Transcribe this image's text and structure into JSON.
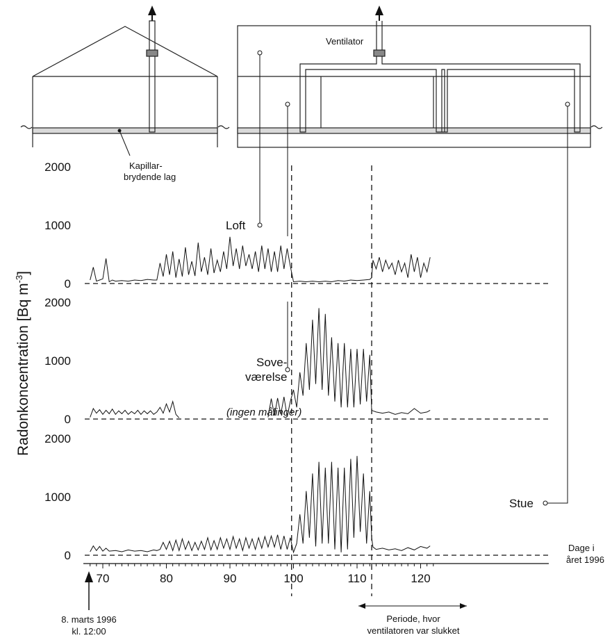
{
  "chart_data": {
    "type": "line",
    "ylabel": "Radonkoncentration [Bq m",
    "ylabel_sup": "-3",
    "ylabel_close": "]",
    "xlabel_line1": "Dage i",
    "xlabel_line2": "året 1996",
    "xlim": [
      67.5,
      122
    ],
    "ylim": [
      0,
      2000
    ],
    "x_ticks": [
      70,
      80,
      90,
      100,
      110,
      120
    ],
    "y_ticks": [
      "0",
      "1000",
      "2000"
    ],
    "fan_off_period": [
      99.7,
      112.3
    ],
    "series": [
      {
        "name": "Loft",
        "x": [
          68.0,
          68.5,
          69.0,
          69.5,
          70.0,
          70.5,
          71.0,
          71.5,
          72.0,
          73.0,
          74.0,
          75.0,
          76.0,
          77.0,
          78.0,
          78.5,
          79.0,
          79.5,
          80.0,
          80.5,
          81.0,
          81.5,
          82.0,
          82.5,
          83.0,
          83.5,
          84.0,
          84.5,
          85.0,
          85.5,
          86.0,
          86.5,
          87.0,
          87.5,
          88.0,
          88.5,
          89.0,
          89.5,
          90.0,
          90.5,
          91.0,
          91.5,
          92.0,
          92.5,
          93.0,
          93.5,
          94.0,
          94.5,
          95.0,
          95.5,
          96.0,
          96.5,
          97.0,
          97.5,
          98.0,
          98.5,
          99.0,
          99.5,
          100.0,
          101.0,
          102.0,
          103.0,
          104.0,
          105.0,
          106.0,
          107.0,
          108.0,
          109.0,
          110.0,
          111.0,
          112.0,
          112.3,
          112.5,
          113.0,
          113.5,
          114.0,
          114.5,
          115.0,
          115.5,
          116.0,
          116.5,
          117.0,
          117.5,
          118.0,
          118.5,
          119.0,
          119.5,
          120.0,
          120.5,
          121.0,
          121.5
        ],
        "values": [
          60,
          280,
          40,
          60,
          80,
          430,
          30,
          60,
          40,
          50,
          40,
          60,
          50,
          70,
          60,
          60,
          350,
          120,
          500,
          150,
          550,
          100,
          420,
          120,
          620,
          150,
          380,
          130,
          700,
          200,
          450,
          150,
          600,
          180,
          400,
          200,
          550,
          250,
          800,
          300,
          600,
          250,
          650,
          300,
          500,
          250,
          550,
          200,
          650,
          250,
          600,
          200,
          550,
          200,
          650,
          250,
          600,
          300,
          30,
          40,
          30,
          40,
          30,
          40,
          30,
          50,
          40,
          60,
          50,
          60,
          70,
          100,
          400,
          250,
          450,
          200,
          400,
          250,
          350,
          150,
          400,
          200,
          350,
          100,
          500,
          200,
          450,
          100,
          350,
          200,
          450
        ]
      },
      {
        "name": "Sove-værelse",
        "x": [
          68.0,
          68.5,
          69.0,
          69.5,
          70.0,
          70.5,
          71.0,
          71.5,
          72.0,
          72.5,
          73.0,
          73.5,
          74.0,
          74.5,
          75.0,
          75.5,
          76.0,
          76.5,
          77.0,
          77.5,
          78.0,
          78.5,
          79.0,
          79.5,
          80.0,
          80.5,
          81.0,
          81.5,
          82.0,
          null,
          96.0,
          96.5,
          97.0,
          97.5,
          98.0,
          98.5,
          99.0,
          99.5,
          100.0,
          100.5,
          101.0,
          101.5,
          102.0,
          102.5,
          103.0,
          103.5,
          104.0,
          104.5,
          105.0,
          105.5,
          106.0,
          106.5,
          107.0,
          107.5,
          108.0,
          108.5,
          109.0,
          109.5,
          110.0,
          110.5,
          111.0,
          111.5,
          112.0,
          112.3,
          112.5,
          113.0,
          114.0,
          115.0,
          116.0,
          117.0,
          118.0,
          119.0,
          120.0,
          121.0,
          121.5
        ],
        "values": [
          30,
          180,
          100,
          160,
          80,
          150,
          90,
          170,
          80,
          140,
          90,
          150,
          80,
          130,
          90,
          150,
          80,
          140,
          90,
          140,
          80,
          120,
          200,
          100,
          260,
          120,
          300,
          80,
          20,
          null,
          30,
          350,
          60,
          360,
          80,
          380,
          40,
          300,
          500,
          200,
          800,
          400,
          1300,
          500,
          1700,
          600,
          1900,
          500,
          1800,
          400,
          1400,
          300,
          1300,
          200,
          1300,
          200,
          1200,
          200,
          1200,
          250,
          1200,
          300,
          1100,
          150,
          140,
          120,
          100,
          120,
          80,
          110,
          90,
          180,
          100,
          120,
          150
        ]
      },
      {
        "name": "Stue",
        "x": [
          68.0,
          68.5,
          69.0,
          69.5,
          70.0,
          70.5,
          71.0,
          72.0,
          73.0,
          74.0,
          75.0,
          76.0,
          77.0,
          78.0,
          78.5,
          79.0,
          79.5,
          80.0,
          80.5,
          81.0,
          81.5,
          82.0,
          82.5,
          83.0,
          83.5,
          84.0,
          84.5,
          85.0,
          85.5,
          86.0,
          86.5,
          87.0,
          87.5,
          88.0,
          88.5,
          89.0,
          89.5,
          90.0,
          90.5,
          91.0,
          91.5,
          92.0,
          92.5,
          93.0,
          93.5,
          94.0,
          94.5,
          95.0,
          95.5,
          96.0,
          96.5,
          97.0,
          97.5,
          98.0,
          98.5,
          99.0,
          99.5,
          100.0,
          100.5,
          101.0,
          101.5,
          102.0,
          102.5,
          103.0,
          103.5,
          104.0,
          104.5,
          105.0,
          105.5,
          106.0,
          106.5,
          107.0,
          107.5,
          108.0,
          108.5,
          109.0,
          109.5,
          110.0,
          110.5,
          111.0,
          111.5,
          112.0,
          112.3,
          112.5,
          113.0,
          114.0,
          115.0,
          116.0,
          117.0,
          118.0,
          119.0,
          120.0,
          121.0,
          121.5
        ],
        "values": [
          60,
          160,
          80,
          150,
          70,
          120,
          70,
          80,
          60,
          90,
          70,
          80,
          60,
          90,
          80,
          100,
          220,
          100,
          240,
          80,
          260,
          80,
          280,
          100,
          240,
          80,
          220,
          90,
          240,
          100,
          300,
          90,
          250,
          100,
          300,
          120,
          280,
          100,
          320,
          120,
          280,
          80,
          300,
          120,
          280,
          100,
          300,
          120,
          320,
          140,
          330,
          140,
          350,
          100,
          330,
          100,
          300,
          50,
          200,
          700,
          200,
          1100,
          300,
          1400,
          150,
          1600,
          200,
          1500,
          200,
          1600,
          100,
          1500,
          50,
          1500,
          100,
          1650,
          300,
          1700,
          400,
          1400,
          200,
          1100,
          300,
          140,
          100,
          120,
          90,
          110,
          80,
          130,
          90,
          150,
          120,
          160
        ]
      }
    ],
    "annotations": {
      "loft_label": "Loft",
      "sove_line1": "Sove-",
      "sove_line2": "værelse",
      "ingen": "(ingen målinger)",
      "stue_label": "Stue",
      "ventilator": "Ventilator",
      "kapillar_line1": "Kapillar-",
      "kapillar_line2": "brydende lag",
      "start_line1": "8. marts 1996",
      "start_line2": "kl. 12:00",
      "periode_line1": "Periode, hvor",
      "periode_line2": "ventilatoren var slukket"
    }
  }
}
